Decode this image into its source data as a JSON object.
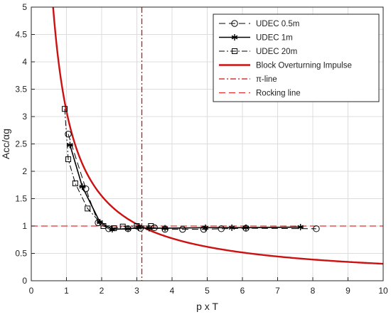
{
  "colors": {
    "udec": "#000000",
    "impulse_curve": "#cc1111",
    "pi_line": "#cc1111",
    "rocking_line": "#dd3333",
    "grid": "#dcdcdc"
  },
  "chart_data": {
    "type": "line",
    "title": "",
    "xlabel": "p x T",
    "ylabel": "Acc/αg",
    "xlim": [
      0,
      10
    ],
    "ylim": [
      0,
      5
    ],
    "xticks": [
      0,
      1,
      2,
      3,
      4,
      5,
      6,
      7,
      8,
      9,
      10
    ],
    "yticks": [
      0,
      0.5,
      1,
      1.5,
      2,
      2.5,
      3,
      3.5,
      4,
      4.5,
      5
    ],
    "ytick_labels": [
      "0",
      "0.5",
      "1",
      "1.5",
      "2",
      "2.5",
      "3",
      "3.5",
      "4",
      "4.5",
      "5"
    ],
    "grid": true,
    "legend_position": "top-right",
    "series": [
      {
        "name": "UDEC 0.5m",
        "line": "dash",
        "marker": "circle",
        "x": [
          1.05,
          1.55,
          1.9,
          2.2,
          2.75,
          3.1,
          3.5,
          3.8,
          4.3,
          4.9,
          5.4,
          6.1,
          8.1
        ],
        "y": [
          2.68,
          1.68,
          1.06,
          0.95,
          0.95,
          0.96,
          0.97,
          0.94,
          0.94,
          0.94,
          0.95,
          0.96,
          0.95
        ]
      },
      {
        "name": "UDEC 1m",
        "line": "solid",
        "marker": "asterisk",
        "x": [
          1.1,
          1.45,
          1.95,
          2.3,
          2.75,
          3.05,
          3.35,
          3.8,
          4.95,
          5.7,
          6.1,
          7.65
        ],
        "y": [
          2.48,
          1.72,
          1.07,
          0.94,
          0.95,
          0.97,
          0.96,
          0.96,
          0.97,
          0.97,
          0.97,
          0.98
        ]
      },
      {
        "name": "UDEC 20m",
        "line": "dashdot",
        "marker": "square",
        "x": [
          0.95,
          1.05,
          1.25,
          1.6,
          2.05,
          2.35,
          2.6,
          3.0,
          3.4
        ],
        "y": [
          3.14,
          2.22,
          1.78,
          1.32,
          1.0,
          0.96,
          0.99,
          1.0,
          1.0
        ]
      },
      {
        "name": "Block Overturning Impulse",
        "line": "solid",
        "curve": "y = 3.1 / x",
        "x_start": 0.62,
        "x_end": 10
      },
      {
        "name": "π-line",
        "line": "dashdot",
        "orientation": "vertical",
        "x": 3.1416
      },
      {
        "name": "Rocking line",
        "line": "dash",
        "orientation": "horizontal",
        "y": 1.0
      }
    ]
  }
}
